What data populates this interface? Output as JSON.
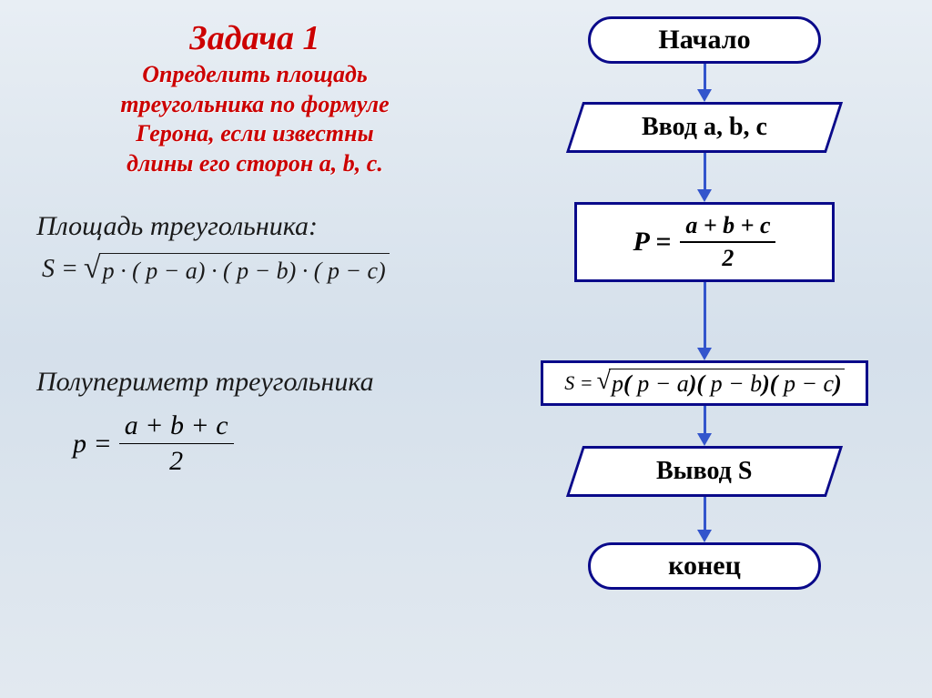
{
  "left": {
    "title": "Задача 1",
    "subtitle_l1": "Определить площадь",
    "subtitle_l2": "треугольника по формуле",
    "subtitle_l3": "Герона,  если известны",
    "subtitle_l4": "длины его сторон a, b, c.",
    "area_label": "Площадь   треугольника:",
    "area_formula_lhs": "S =",
    "area_formula_body": "p · ( p − a) · ( p − b) · ( p − c)",
    "semiperimeter_label": "Полупериметр треугольника",
    "p_lhs": "p =",
    "p_num": "a + b + c",
    "p_den": "2"
  },
  "flow": {
    "start": "Начало",
    "input": "Ввод a, b, c",
    "p_lhs": "P =",
    "p_num": "a + b + c",
    "p_den": "2",
    "s_lhs": "S =",
    "s_body": "p( p − a)( p − b)( p − c)",
    "output": "Вывод S",
    "end": "конец",
    "arrows_color": "#3355cc",
    "border_color": "#0a0a8a",
    "bg_color": "#ffffff",
    "arrow_lengths": [
      28,
      40,
      72,
      30,
      36
    ]
  },
  "style": {
    "title_color": "#cc0000",
    "title_fontsize": 38,
    "subtitle_fontsize": 26,
    "label_fontsize": 30,
    "formula_fontsize": 28,
    "background_gradient": [
      "#e8eef4",
      "#d5e0eb",
      "#e2e9f0"
    ],
    "font_family": "Times New Roman"
  }
}
